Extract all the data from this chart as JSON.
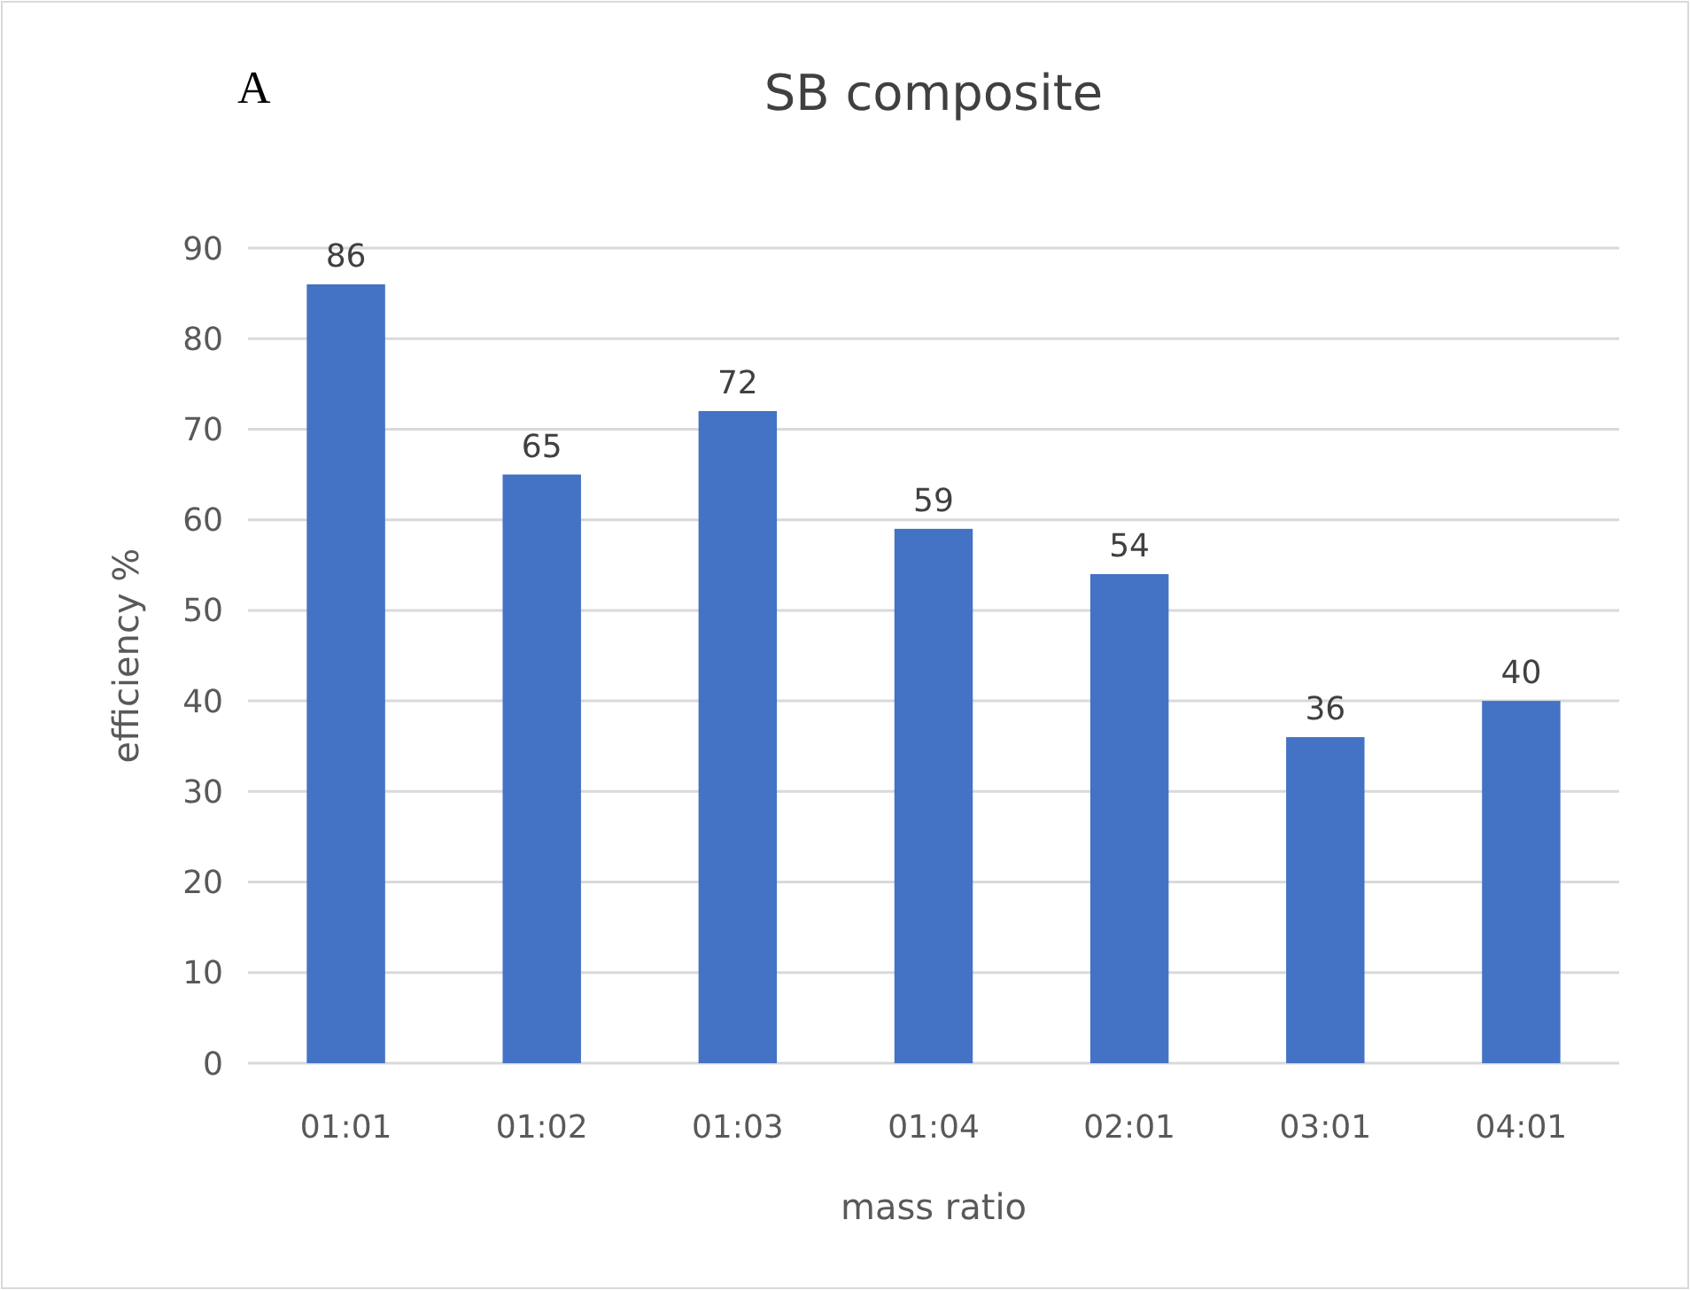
{
  "chart_data": {
    "type": "bar",
    "title": "SB composite",
    "xlabel": "mass ratio",
    "ylabel": "efficiency %",
    "annotations": [
      "A"
    ],
    "categories": [
      "01:01",
      "01:02",
      "01:03",
      "01:04",
      "02:01",
      "03:01",
      "04:01"
    ],
    "values": [
      86,
      65,
      72,
      59,
      54,
      36,
      40
    ],
    "color": "#4472c4",
    "ylim": [
      0,
      90
    ],
    "yticks": [
      0,
      10,
      20,
      30,
      40,
      50,
      60,
      70,
      80,
      90
    ],
    "grid": "y",
    "data_labels": true
  }
}
